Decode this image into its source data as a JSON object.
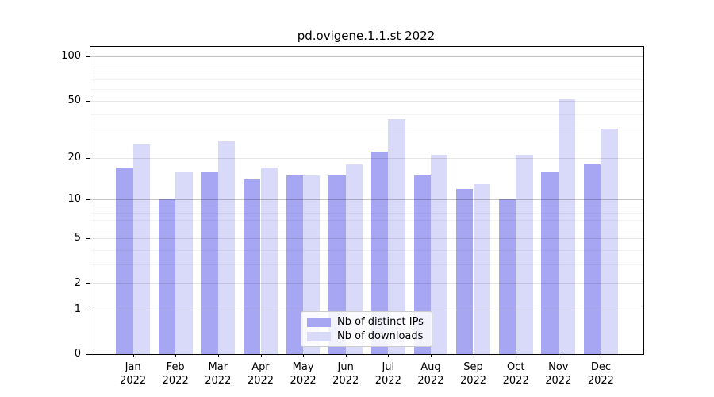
{
  "title": "pd.ovigene.1.1.st 2022",
  "chart_data": {
    "type": "bar",
    "title": "pd.ovigene.1.1.st 2022",
    "categories": [
      "Jan",
      "Feb",
      "Mar",
      "Apr",
      "May",
      "Jun",
      "Jul",
      "Aug",
      "Sep",
      "Oct",
      "Nov",
      "Dec"
    ],
    "category_year": "2022",
    "series": [
      {
        "name": "Nb of distinct IPs",
        "color": "#a6a6f2",
        "values": [
          17,
          10,
          16,
          14,
          15,
          15,
          22,
          15,
          12,
          10,
          16,
          18
        ]
      },
      {
        "name": "Nb of downloads",
        "color": "#d9d9f9",
        "values": [
          25,
          16,
          26,
          17,
          15,
          18,
          37,
          21,
          13,
          21,
          51,
          32
        ]
      }
    ],
    "xlabel": "",
    "ylabel": "",
    "yscale": "log(value+1)",
    "yticks": [
      0,
      1,
      2,
      5,
      10,
      20,
      50,
      100
    ],
    "minor_yticks": [
      3,
      4,
      6,
      7,
      8,
      9,
      30,
      40,
      60,
      70,
      80,
      90
    ],
    "decade_ticks": [
      1,
      10,
      100
    ],
    "ylim": [
      0,
      116
    ],
    "grid": true,
    "grid_on_top_of_bars": true,
    "legend_position": "lower center",
    "legend_labels": [
      "Nb of distinct IPs",
      "Nb of downloads"
    ]
  },
  "colors": {
    "ips_bar": "#a6a6f2",
    "downloads_bar": "#d9d9f9",
    "spine": "#000000",
    "background": "#ffffff",
    "legend_border": "#cccccc"
  }
}
